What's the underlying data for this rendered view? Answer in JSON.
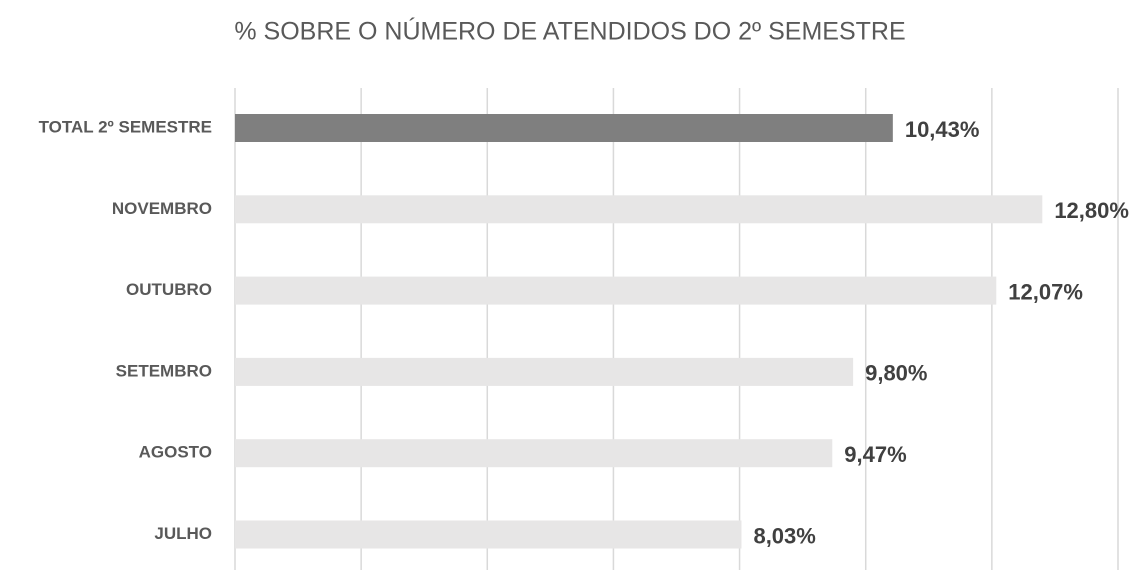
{
  "chart_data": {
    "type": "hbar",
    "title": "% SOBRE O NÚMERO DE ATENDIDOS DO 2º SEMESTRE",
    "categories": [
      "TOTAL 2º SEMESTRE",
      "NOVEMBRO",
      "OUTUBRO",
      "SETEMBRO",
      "AGOSTO",
      "JULHO"
    ],
    "values": [
      10.43,
      12.8,
      12.07,
      9.8,
      9.47,
      8.03
    ],
    "value_labels": [
      "10,43%",
      "12,80%",
      "12,07%",
      "9,80%",
      "9,47%",
      "8,03%"
    ],
    "colors": [
      "#7f7f7f",
      "#e7e6e6",
      "#e7e6e6",
      "#e7e6e6",
      "#e7e6e6",
      "#e7e6e6"
    ],
    "xlim": [
      0,
      14
    ],
    "xticks": [
      0,
      2,
      4,
      6,
      8,
      10,
      12,
      14
    ],
    "grid": true
  }
}
